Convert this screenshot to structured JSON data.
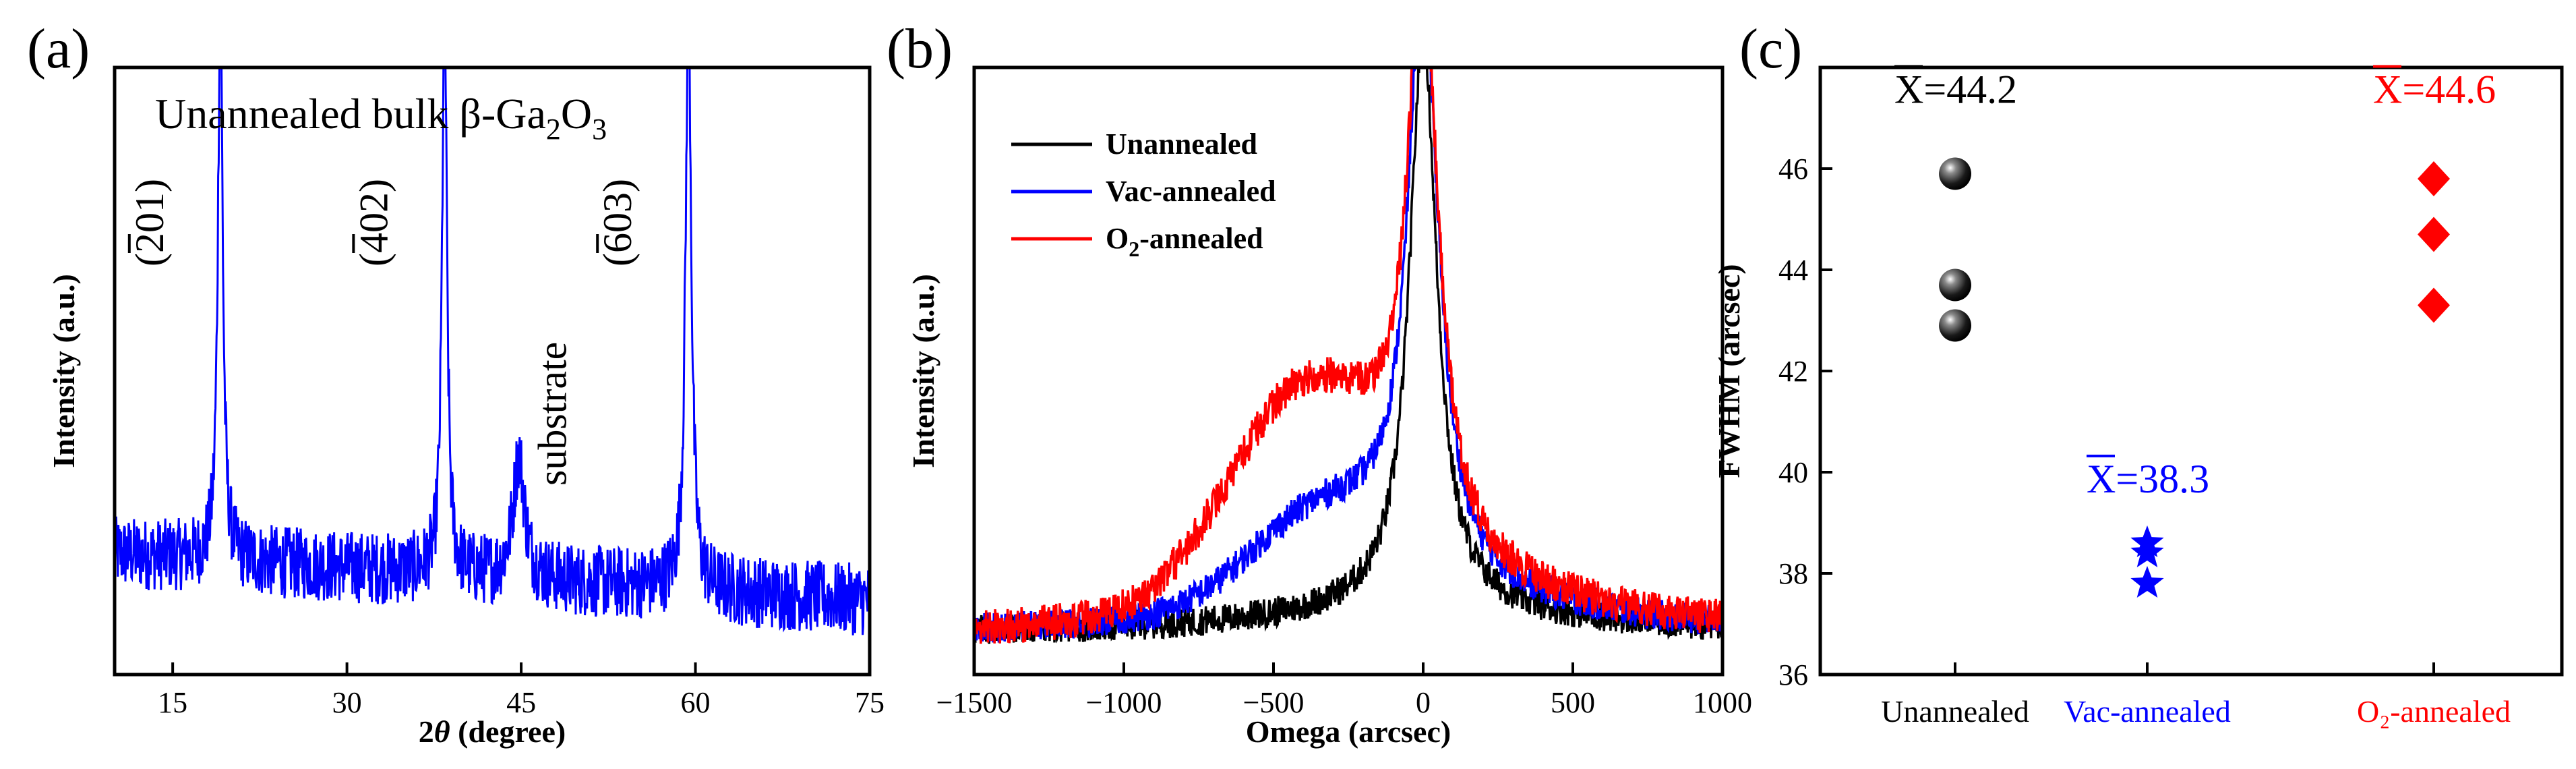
{
  "figure": {
    "panels": [
      "(a)",
      "(b)",
      "(c)"
    ]
  },
  "chart_data": [
    {
      "panel": "(a)",
      "type": "line",
      "title": "Unannealed bulk β-Ga₂O₃",
      "title_parts": [
        "Unannealed bulk β-Ga",
        "2",
        "O",
        "3"
      ],
      "xlabel": "2θ (degree)",
      "ylabel": "Intensity (a.u.)",
      "xlim": [
        10,
        75
      ],
      "ylim": [
        0,
        1
      ],
      "xticks": [
        15,
        30,
        45,
        60,
        75
      ],
      "yticks_shown": false,
      "color": "#0000ff",
      "baseline": 0.2,
      "noise": 0.12,
      "peaks": [
        {
          "center": 19.1,
          "height": 0.93,
          "width": 0.25
        },
        {
          "center": 38.4,
          "height": 0.94,
          "width": 0.25
        },
        {
          "center": 44.8,
          "height": 0.2,
          "width": 0.6
        },
        {
          "center": 59.4,
          "height": 0.96,
          "width": 0.3
        }
      ],
      "annotations": [
        {
          "text": "(201)",
          "overline": "2",
          "x": 19.1
        },
        {
          "text": "(402)",
          "overline": "4",
          "x": 38.4
        },
        {
          "text": "substrate",
          "overline": "",
          "x": 44.8
        },
        {
          "text": "(603)",
          "overline": "6",
          "x": 59.4
        }
      ]
    },
    {
      "panel": "(b)",
      "type": "line",
      "xlabel": "Omega (arcsec)",
      "ylabel": "Intensity (a.u.)",
      "xlim": [
        -1500,
        1000
      ],
      "ylim": [
        0,
        1
      ],
      "xticks": [
        -1500,
        -1000,
        -500,
        0,
        500,
        1000
      ],
      "yticks_shown": false,
      "legend_position": "top-left",
      "series": [
        {
          "name": "Unannealed",
          "color": "#000000",
          "peak": 0.93,
          "gamma": 55,
          "shoulder": 0.0,
          "shoulder_center": -400,
          "shoulder_width": 300,
          "tail": 0.06,
          "noise": 0.05
        },
        {
          "name": "Vac-annealed",
          "color": "#0000ff",
          "peak": 0.96,
          "gamma": 60,
          "shoulder": 0.14,
          "shoulder_center": -350,
          "shoulder_width": 330,
          "tail": 0.11,
          "noise": 0.05
        },
        {
          "name": "O2-annealed",
          "color": "#ff0000",
          "peak": 0.91,
          "gamma": 60,
          "shoulder": 0.33,
          "shoulder_center": -400,
          "shoulder_width": 360,
          "tail": 0.15,
          "noise": 0.06
        }
      ]
    },
    {
      "panel": "(c)",
      "type": "scatter",
      "ylabel": "FWHM (arcsec)",
      "ylim": [
        36,
        48
      ],
      "yticks": [
        36,
        38,
        40,
        42,
        44,
        46
      ],
      "categories": [
        "Unannealed",
        "Vac-annealed",
        "O2-annealed"
      ],
      "groups": [
        {
          "name": "Unannealed",
          "label": "Unannealed",
          "marker": "sphere",
          "color": "#000000",
          "values": [
            45.9,
            43.7,
            42.9
          ],
          "mean_label": "X̄=44.2",
          "mean_value": "=44.2",
          "mean_y": 47.3
        },
        {
          "name": "Vac-annealed",
          "label": "Vac-annealed",
          "marker": "star",
          "color": "#0000ff",
          "values": [
            38.6,
            38.4,
            37.8
          ],
          "mean_label": "X̄=38.3",
          "mean_value": "=38.3",
          "mean_y": 39.6
        },
        {
          "name": "O2-annealed",
          "label": "O₂-annealed",
          "marker": "diamond",
          "color": "#ff0000",
          "values": [
            45.8,
            44.7,
            43.3
          ],
          "mean_label": "X̄=44.6",
          "mean_value": "=44.6",
          "mean_y": 47.3
        }
      ]
    }
  ]
}
